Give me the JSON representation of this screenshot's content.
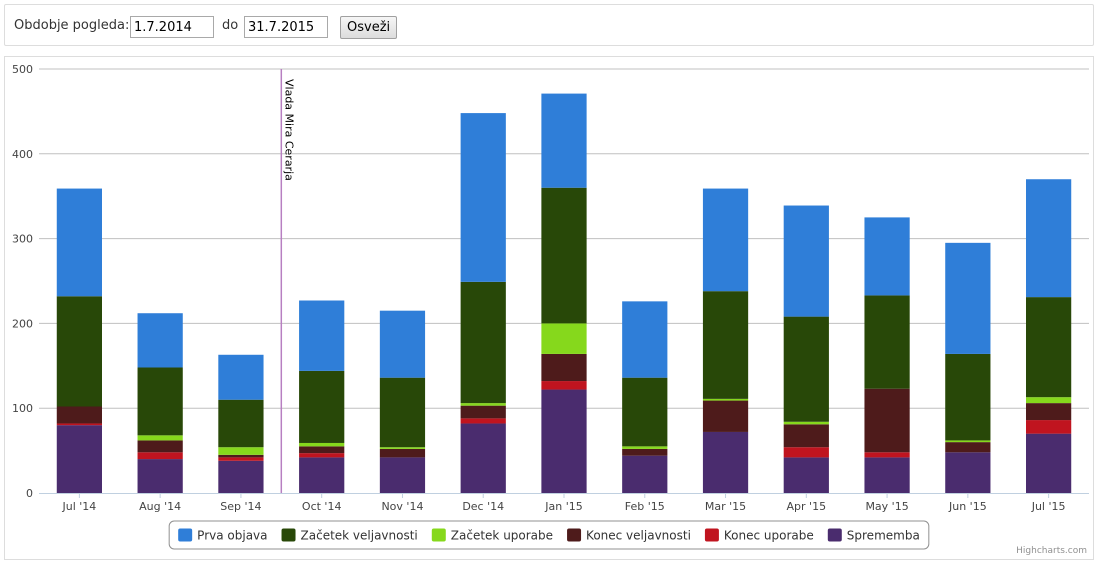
{
  "filter": {
    "period_label": "Obdobje pogleda:",
    "from_value": "1.7.2014",
    "to_label": "do",
    "to_value": "31.7.2015",
    "refresh_label": "Osveži"
  },
  "chart_data": {
    "type": "bar",
    "stacked": true,
    "categories": [
      "Jul '14",
      "Aug '14",
      "Sep '14",
      "Oct '14",
      "Nov '14",
      "Dec '14",
      "Jan '15",
      "Feb '15",
      "Mar '15",
      "Apr '15",
      "May '15",
      "Jun '15",
      "Jul '15"
    ],
    "ylim": [
      0,
      500
    ],
    "yticks": [
      0,
      100,
      200,
      300,
      400,
      500
    ],
    "grid": true,
    "legend_position": "bottom-center",
    "series": [
      {
        "name": "Sprememba",
        "color": "#4a2c6e",
        "values": [
          80,
          40,
          38,
          42,
          42,
          82,
          122,
          44,
          72,
          42,
          42,
          48,
          70
        ]
      },
      {
        "name": "Konec uporabe",
        "color": "#c0141f",
        "values": [
          2,
          8,
          4,
          5,
          0,
          6,
          10,
          0,
          0,
          12,
          6,
          0,
          16
        ]
      },
      {
        "name": "Konec veljavnosti",
        "color": "#4e1b1b",
        "values": [
          20,
          14,
          3,
          8,
          10,
          15,
          32,
          8,
          37,
          27,
          75,
          12,
          20
        ]
      },
      {
        "name": "Začetek uporabe",
        "color": "#86d81c",
        "values": [
          0,
          6,
          9,
          4,
          2,
          3,
          36,
          3,
          2,
          3,
          0,
          2,
          7
        ]
      },
      {
        "name": "Začetek veljavnosti",
        "color": "#284808",
        "values": [
          130,
          80,
          56,
          85,
          82,
          143,
          160,
          81,
          127,
          124,
          110,
          102,
          118
        ]
      },
      {
        "name": "Prva objava",
        "color": "#2f7ed8",
        "values": [
          127,
          64,
          53,
          83,
          79,
          199,
          111,
          90,
          121,
          131,
          92,
          131,
          139
        ]
      }
    ],
    "legend_order": [
      "Prva objava",
      "Začetek veljavnosti",
      "Začetek uporabe",
      "Konec veljavnosti",
      "Konec uporabe",
      "Sprememba"
    ],
    "annotation": {
      "label": "Vlada Mira Cerarja",
      "x_position_between": [
        "Sep '14",
        "Oct '14"
      ]
    },
    "credits": "Highcharts.com"
  }
}
